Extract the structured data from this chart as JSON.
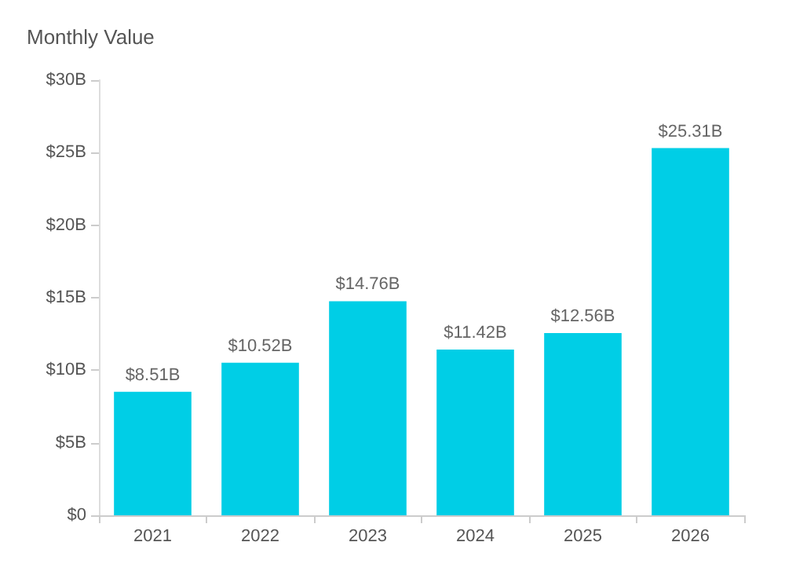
{
  "chart_data": {
    "type": "bar",
    "title": "Monthly Value",
    "categories": [
      "2021",
      "2022",
      "2023",
      "2024",
      "2025",
      "2026"
    ],
    "values": [
      8.51,
      10.52,
      14.76,
      11.42,
      12.56,
      25.31
    ],
    "value_labels": [
      "$8.51B",
      "$10.52B",
      "$14.76B",
      "$11.42B",
      "$12.56B",
      "$25.31B"
    ],
    "color": "#00cee6",
    "ylim": [
      0,
      30
    ],
    "yticks": [
      {
        "value": 0,
        "label": "$0"
      },
      {
        "value": 5,
        "label": "$5B"
      },
      {
        "value": 10,
        "label": "$10B"
      },
      {
        "value": 15,
        "label": "$15B"
      },
      {
        "value": 20,
        "label": "$20B"
      },
      {
        "value": 25,
        "label": "$25B"
      },
      {
        "value": 30,
        "label": "$30B"
      }
    ],
    "grid": false
  }
}
